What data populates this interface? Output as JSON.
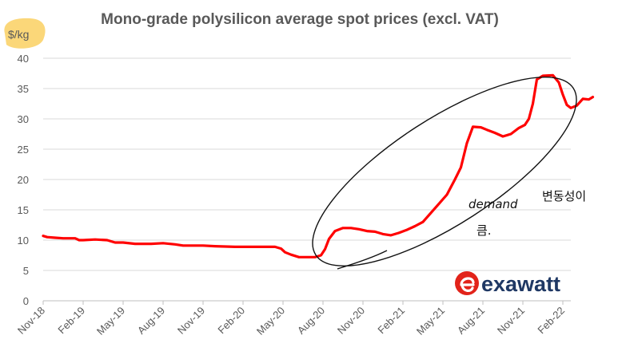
{
  "chart_data": {
    "type": "line",
    "title": "Mono-grade polysilicon average spot prices (excl. VAT)",
    "ylabel": "$/kg",
    "xlabel": "",
    "ylim": [
      0,
      40
    ],
    "yticks": [
      0,
      5,
      10,
      15,
      20,
      25,
      30,
      35,
      40
    ],
    "grid": true,
    "categories": [
      "Nov-18",
      "Feb-19",
      "May-19",
      "Aug-19",
      "Nov-19",
      "Feb-20",
      "May-20",
      "Aug-20",
      "Nov-20",
      "Feb-21",
      "May-21",
      "Aug-21",
      "Nov-21",
      "Feb-22"
    ],
    "series": [
      {
        "name": "Mono-grade polysilicon average spot price",
        "color": "#ff0000",
        "points": [
          [
            0,
            10.7
          ],
          [
            0.1,
            10.5
          ],
          [
            0.3,
            10.4
          ],
          [
            0.5,
            10.3
          ],
          [
            0.8,
            10.3
          ],
          [
            0.9,
            10.0
          ],
          [
            1.0,
            10.0
          ],
          [
            1.3,
            10.1
          ],
          [
            1.6,
            10.0
          ],
          [
            1.8,
            9.6
          ],
          [
            2.0,
            9.6
          ],
          [
            2.3,
            9.4
          ],
          [
            2.7,
            9.4
          ],
          [
            3.0,
            9.5
          ],
          [
            3.3,
            9.3
          ],
          [
            3.5,
            9.1
          ],
          [
            4.0,
            9.1
          ],
          [
            4.3,
            9.0
          ],
          [
            4.8,
            8.9
          ],
          [
            5.3,
            8.9
          ],
          [
            5.6,
            8.9
          ],
          [
            5.8,
            8.9
          ],
          [
            5.95,
            8.6
          ],
          [
            6.05,
            8.0
          ],
          [
            6.2,
            7.6
          ],
          [
            6.4,
            7.2
          ],
          [
            6.8,
            7.2
          ],
          [
            6.95,
            7.5
          ],
          [
            7.05,
            8.5
          ],
          [
            7.15,
            10.2
          ],
          [
            7.3,
            11.5
          ],
          [
            7.5,
            12.0
          ],
          [
            7.7,
            12.0
          ],
          [
            7.9,
            11.8
          ],
          [
            8.1,
            11.5
          ],
          [
            8.3,
            11.4
          ],
          [
            8.5,
            11.0
          ],
          [
            8.7,
            10.8
          ],
          [
            8.9,
            11.2
          ],
          [
            9.1,
            11.7
          ],
          [
            9.3,
            12.3
          ],
          [
            9.5,
            13.0
          ],
          [
            9.7,
            14.5
          ],
          [
            9.9,
            16.0
          ],
          [
            10.1,
            17.5
          ],
          [
            10.3,
            20.0
          ],
          [
            10.45,
            22.0
          ],
          [
            10.6,
            26.0
          ],
          [
            10.75,
            28.7
          ],
          [
            10.95,
            28.6
          ],
          [
            11.1,
            28.2
          ],
          [
            11.3,
            27.7
          ],
          [
            11.5,
            27.1
          ],
          [
            11.7,
            27.5
          ],
          [
            11.9,
            28.5
          ],
          [
            12.05,
            29.0
          ],
          [
            12.15,
            30.0
          ],
          [
            12.25,
            32.5
          ],
          [
            12.35,
            36.5
          ],
          [
            12.5,
            37.1
          ],
          [
            12.75,
            37.2
          ],
          [
            12.9,
            36.0
          ],
          [
            13.0,
            34.0
          ],
          [
            13.1,
            32.3
          ],
          [
            13.2,
            31.8
          ],
          [
            13.35,
            32.2
          ],
          [
            13.5,
            33.3
          ],
          [
            13.65,
            33.2
          ],
          [
            13.75,
            33.6
          ]
        ]
      }
    ]
  },
  "annotations": {
    "note_english": "demand",
    "note_korean_line1": "변동성이",
    "note_korean_line2": "큼."
  },
  "logo": {
    "brand": "exawatt",
    "icon": "exawatt-e-logo-icon",
    "color": "#e2231a",
    "text_color": "#1f3864"
  }
}
